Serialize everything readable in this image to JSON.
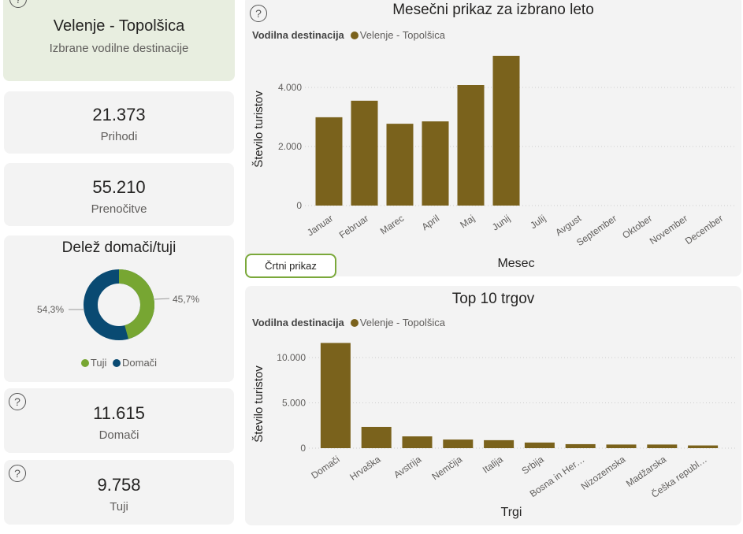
{
  "destination": {
    "name": "Velenje - Topolšica",
    "subtitle": "Izbrane vodilne destinacije"
  },
  "kpis": {
    "prihodi": {
      "value": "21.373",
      "label": "Prihodi"
    },
    "prenocitve": {
      "value": "55.210",
      "label": "Prenočitve"
    },
    "domaci": {
      "value": "11.615",
      "label": "Domači"
    },
    "tuji": {
      "value": "9.758",
      "label": "Tuji"
    }
  },
  "help_icon": "?",
  "donut": {
    "title": "Delež domači/tuji",
    "tuji_label": "Tuji",
    "domaci_label": "Domači",
    "tuji_pct_label": "45,7%",
    "domaci_pct_label": "54,3%",
    "tuji_pct": 45.7,
    "domaci_pct": 54.3,
    "colors": {
      "tuji": "#77a632",
      "domaci": "#094a72"
    }
  },
  "line_button": "Črtni prikaz",
  "bar_color": "#7a621c",
  "chart_data": [
    {
      "type": "bar",
      "title": "Mesečni prikaz za izbrano leto",
      "legend_title": "Vodilna destinacija",
      "legend_entry": "Velenje - Topolšica",
      "xlabel": "Mesec",
      "ylabel": "Število turistov",
      "ylim": [
        0,
        5400
      ],
      "yticks": [
        0,
        2000,
        4000
      ],
      "ytick_labels": [
        "0",
        "2.000",
        "4.000"
      ],
      "categories": [
        "Januar",
        "Februar",
        "Marec",
        "April",
        "Maj",
        "Junij",
        "Julij",
        "Avgust",
        "September",
        "Oktober",
        "November",
        "December"
      ],
      "values": [
        2990,
        3550,
        2770,
        2850,
        4080,
        5070,
        null,
        null,
        null,
        null,
        null,
        null
      ]
    },
    {
      "type": "bar",
      "title": "Top 10 trgov",
      "legend_title": "Vodilna destinacija",
      "legend_entry": "Velenje - Topolšica",
      "xlabel": "Trgi",
      "ylabel": "Število turistov",
      "ylim": [
        0,
        12500
      ],
      "yticks": [
        0,
        5000,
        10000
      ],
      "ytick_labels": [
        "0",
        "5.000",
        "10.000"
      ],
      "categories": [
        "Domači",
        "Hrvaška",
        "Avstrija",
        "Nemčija",
        "Italija",
        "Srbija",
        "Bosna in Her…",
        "Nizozemska",
        "Madžarska",
        "Češka republ…"
      ],
      "values": [
        11615,
        2350,
        1300,
        950,
        880,
        620,
        440,
        400,
        400,
        300
      ]
    }
  ]
}
